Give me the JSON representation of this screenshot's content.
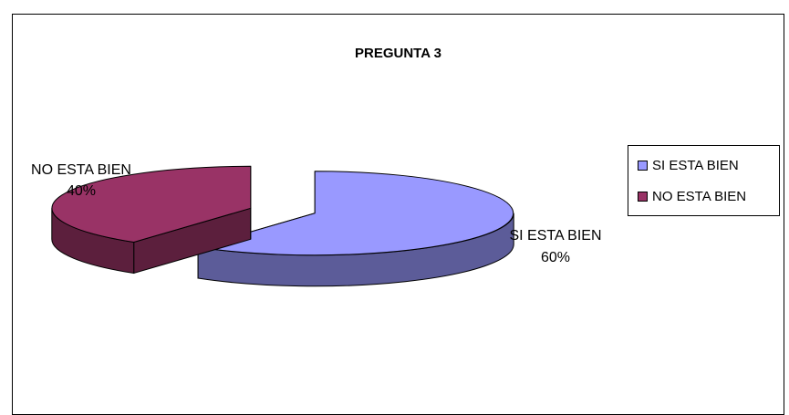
{
  "chart_data": {
    "type": "pie",
    "style": "3d-exploded",
    "title": "PREGUNTA 3",
    "slices": [
      {
        "label": "SI ESTA BIEN",
        "value": 60,
        "percent_label": "60%",
        "color": "#9999ff",
        "side_color": "#5c5c99"
      },
      {
        "label": "NO ESTA BIEN",
        "value": 40,
        "percent_label": "40%",
        "color": "#993366",
        "side_color": "#5c1f3d"
      }
    ],
    "legend_position": "right"
  }
}
